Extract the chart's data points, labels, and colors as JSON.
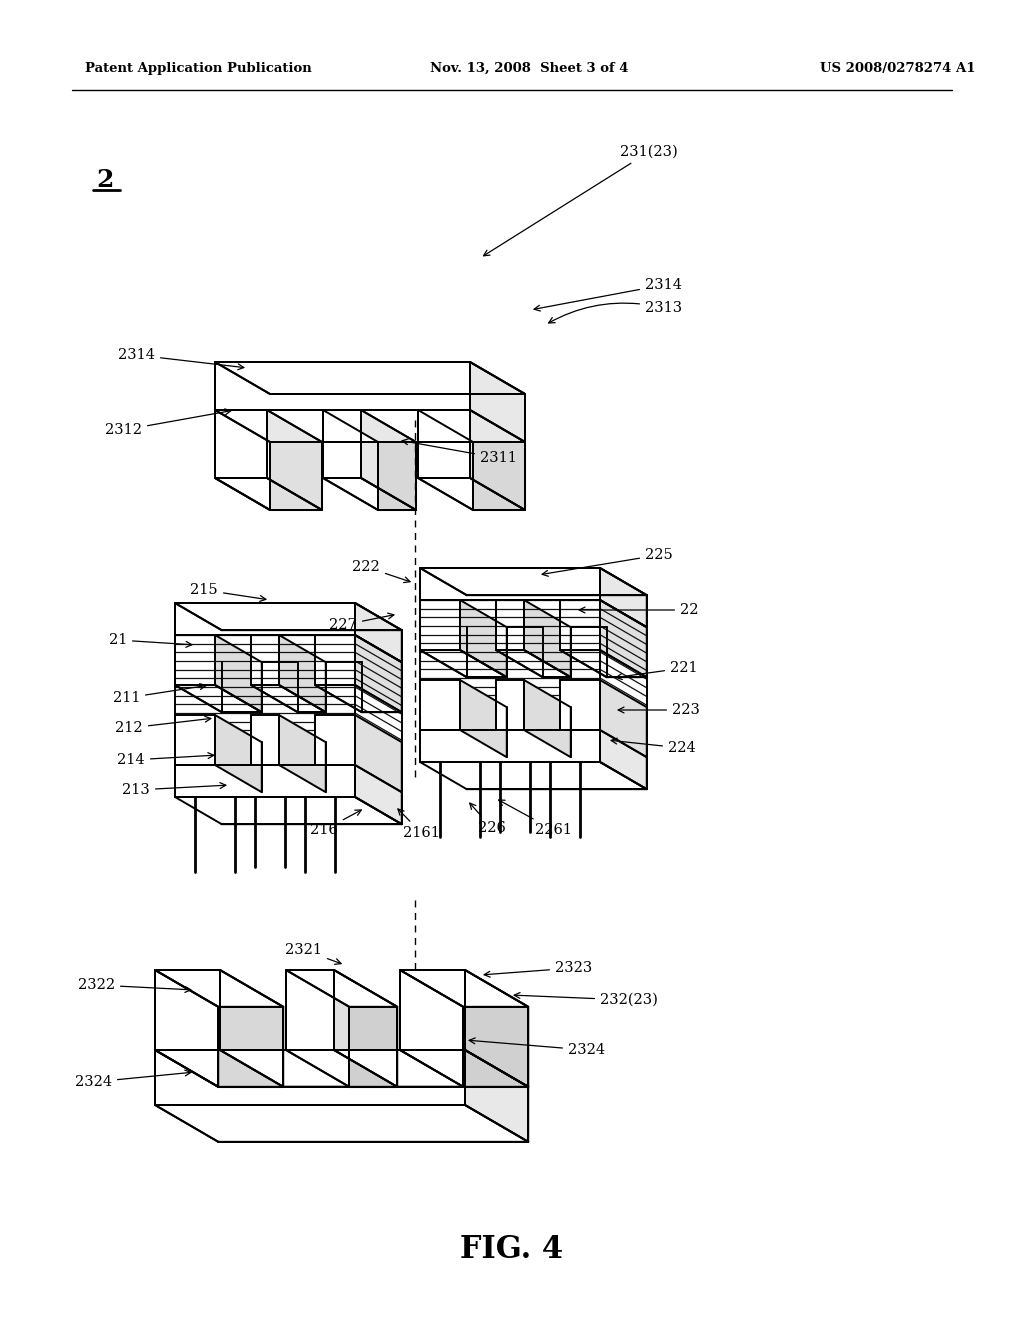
{
  "bg_color": "#ffffff",
  "line_color": "#000000",
  "header_left": "Patent Application Publication",
  "header_mid": "Nov. 13, 2008  Sheet 3 of 4",
  "header_right": "US 2008/0278274 A1",
  "figure_label": "FIG. 4",
  "main_label": "2"
}
